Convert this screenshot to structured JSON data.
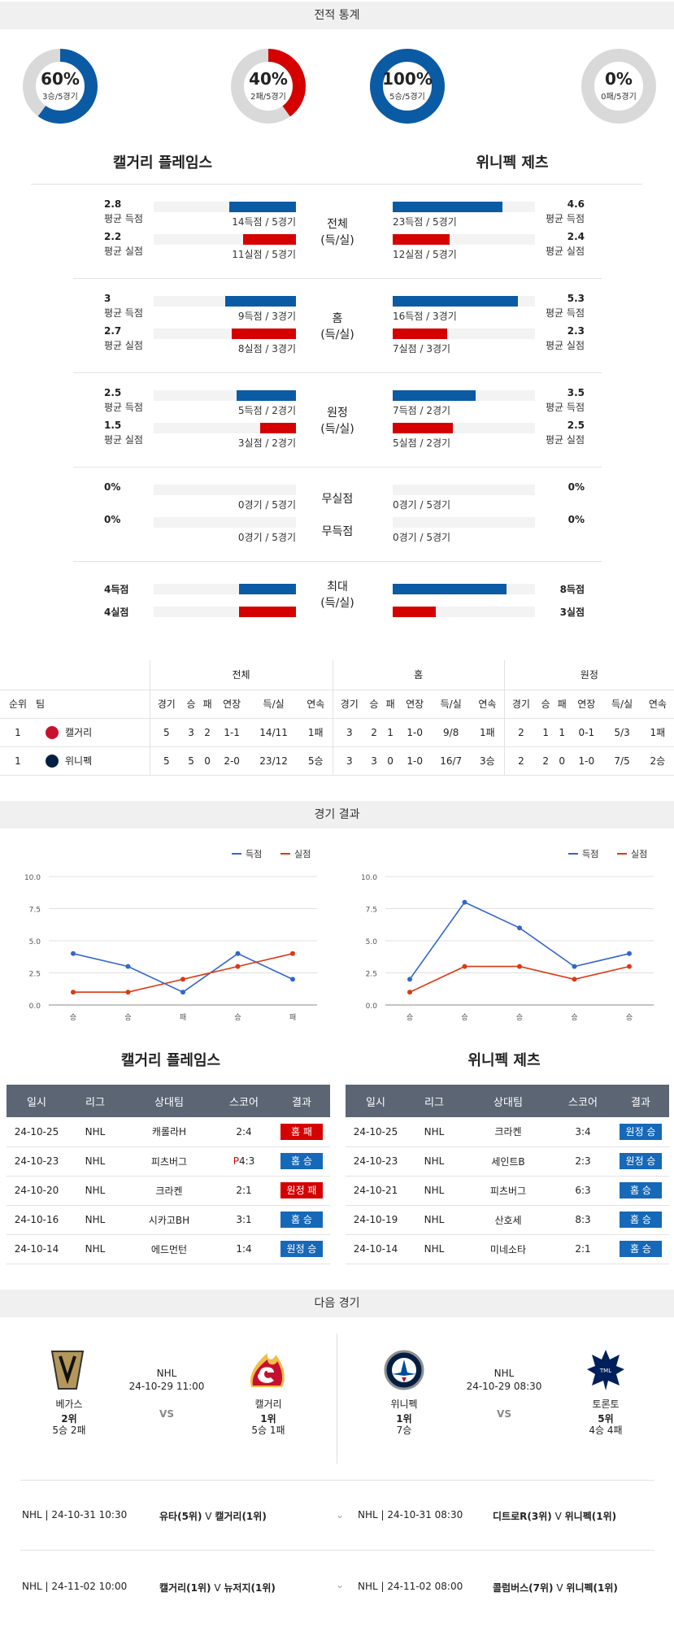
{
  "record_section": {
    "title": "전적 통계",
    "donuts": [
      {
        "pct": "60%",
        "sub": "3승/5경기",
        "value": 0.6,
        "color": "#0b5aa4"
      },
      {
        "pct": "40%",
        "sub": "2패/5경기",
        "value": 0.4,
        "color": "#d50000"
      },
      {
        "pct": "100%",
        "sub": "5승/5경기",
        "value": 1.0,
        "color": "#0b5aa4"
      },
      {
        "pct": "0%",
        "sub": "0패/5경기",
        "value": 0.0,
        "color": "#d50000"
      }
    ],
    "team_left": "캘거리 플레임스",
    "team_right": "위니펙 제츠",
    "groups": [
      {
        "label1": "전체",
        "label2": "(득/실)",
        "left": [
          {
            "val": "2.8",
            "lbl": "평균 득점",
            "sub": "14득점 / 5경기",
            "fill": 0.47,
            "color": "blue"
          },
          {
            "val": "2.2",
            "lbl": "평균 실점",
            "sub": "11실점 / 5경기",
            "fill": 0.37,
            "color": "red"
          }
        ],
        "right": [
          {
            "val": "4.6",
            "lbl": "평균 득점",
            "sub": "23득점 / 5경기",
            "fill": 0.77,
            "color": "blue"
          },
          {
            "val": "2.4",
            "lbl": "평균 실점",
            "sub": "12실점 / 5경기",
            "fill": 0.4,
            "color": "red"
          }
        ]
      },
      {
        "label1": "홈",
        "label2": "(득/실)",
        "left": [
          {
            "val": "3",
            "lbl": "평균 득점",
            "sub": "9득점 / 3경기",
            "fill": 0.5,
            "color": "blue"
          },
          {
            "val": "2.7",
            "lbl": "평균 실점",
            "sub": "8실점 / 3경기",
            "fill": 0.45,
            "color": "red"
          }
        ],
        "right": [
          {
            "val": "5.3",
            "lbl": "평균 득점",
            "sub": "16득점 / 3경기",
            "fill": 0.88,
            "color": "blue"
          },
          {
            "val": "2.3",
            "lbl": "평균 실점",
            "sub": "7실점 / 3경기",
            "fill": 0.38,
            "color": "red"
          }
        ]
      },
      {
        "label1": "원정",
        "label2": "(득/실)",
        "left": [
          {
            "val": "2.5",
            "lbl": "평균 득점",
            "sub": "5득점 / 2경기",
            "fill": 0.42,
            "color": "blue"
          },
          {
            "val": "1.5",
            "lbl": "평균 실점",
            "sub": "3실점 / 2경기",
            "fill": 0.25,
            "color": "red"
          }
        ],
        "right": [
          {
            "val": "3.5",
            "lbl": "평균 득점",
            "sub": "7득점 / 2경기",
            "fill": 0.58,
            "color": "blue"
          },
          {
            "val": "2.5",
            "lbl": "평균 실점",
            "sub": "5실점 / 2경기",
            "fill": 0.42,
            "color": "red"
          }
        ]
      },
      {
        "label1": "무실점",
        "label2": "무득점",
        "left": [
          {
            "val": "0%",
            "lbl": "",
            "sub": "0경기 / 5경기",
            "fill": 0,
            "color": "blue"
          },
          {
            "val": "0%",
            "lbl": "",
            "sub": "0경기 / 5경기",
            "fill": 0,
            "color": "red"
          }
        ],
        "right": [
          {
            "val": "0%",
            "lbl": "",
            "sub": "0경기 / 5경기",
            "fill": 0,
            "color": "blue"
          },
          {
            "val": "0%",
            "lbl": "",
            "sub": "0경기 / 5경기",
            "fill": 0,
            "color": "red"
          }
        ]
      },
      {
        "label1": "최대",
        "label2": "(득/실)",
        "left": [
          {
            "val": "4득점",
            "lbl": "",
            "sub": "",
            "fill": 0.4,
            "color": "blue"
          },
          {
            "val": "4실점",
            "lbl": "",
            "sub": "",
            "fill": 0.4,
            "color": "red"
          }
        ],
        "right": [
          {
            "val": "8득점",
            "lbl": "",
            "sub": "",
            "fill": 0.8,
            "color": "blue"
          },
          {
            "val": "3실점",
            "lbl": "",
            "sub": "",
            "fill": 0.3,
            "color": "red"
          }
        ]
      }
    ]
  },
  "standings": {
    "groups": [
      "전체",
      "홈",
      "원정"
    ],
    "headers": [
      "순위",
      "팀",
      "경기",
      "승",
      "패",
      "연장",
      "득/실",
      "연속",
      "경기",
      "승",
      "패",
      "연장",
      "득/실",
      "연속",
      "경기",
      "승",
      "패",
      "연장",
      "득/실",
      "연속"
    ],
    "rows": [
      [
        "1",
        "캘거리",
        "5",
        "3",
        "2",
        "1-1",
        "14/11",
        "1패",
        "3",
        "2",
        "1",
        "1-0",
        "9/8",
        "1패",
        "2",
        "1",
        "1",
        "0-1",
        "5/3",
        "1패"
      ],
      [
        "1",
        "위니펙",
        "5",
        "5",
        "0",
        "2-0",
        "23/12",
        "5승",
        "3",
        "3",
        "0",
        "1-0",
        "16/7",
        "3승",
        "2",
        "2",
        "0",
        "1-0",
        "7/5",
        "2승"
      ]
    ]
  },
  "results_section": {
    "title": "경기 결과",
    "legend_score": "득점",
    "legend_concede": "실점"
  },
  "chart_data": [
    {
      "type": "line",
      "categories": [
        "승",
        "승",
        "패",
        "승",
        "패"
      ],
      "series": [
        {
          "name": "득점",
          "values": [
            4,
            3,
            1,
            4,
            2
          ],
          "color": "#3366cc"
        },
        {
          "name": "실점",
          "values": [
            1,
            1,
            2,
            3,
            4
          ],
          "color": "#dc3912"
        }
      ],
      "ylim": [
        0,
        10
      ],
      "yticks": [
        "0.0",
        "2.5",
        "5.0",
        "7.5",
        "10.0"
      ]
    },
    {
      "type": "line",
      "categories": [
        "승",
        "승",
        "승",
        "승",
        "승"
      ],
      "series": [
        {
          "name": "득점",
          "values": [
            2,
            8,
            6,
            3,
            4
          ],
          "color": "#3366cc"
        },
        {
          "name": "실점",
          "values": [
            1,
            3,
            3,
            2,
            3
          ],
          "color": "#dc3912"
        }
      ],
      "ylim": [
        0,
        10
      ],
      "yticks": [
        "0.0",
        "2.5",
        "5.0",
        "7.5",
        "10.0"
      ]
    }
  ],
  "results": {
    "headers": [
      "일시",
      "리그",
      "상대팀",
      "스코어",
      "결과"
    ],
    "left_team": "캘거리 플레임스",
    "right_team": "위니펙 제츠",
    "left": [
      {
        "date": "24-10-25",
        "league": "NHL",
        "opp": "캐롤라H",
        "prefix": "",
        "score": "2:4",
        "result": "홈 패",
        "color": "red"
      },
      {
        "date": "24-10-23",
        "league": "NHL",
        "opp": "피츠버그",
        "prefix": "P",
        "score": "4:3",
        "result": "홈 승",
        "color": "blue"
      },
      {
        "date": "24-10-20",
        "league": "NHL",
        "opp": "크라켄",
        "prefix": "",
        "score": "2:1",
        "result": "원정 패",
        "color": "red"
      },
      {
        "date": "24-10-16",
        "league": "NHL",
        "opp": "시카고BH",
        "prefix": "",
        "score": "3:1",
        "result": "홈 승",
        "color": "blue"
      },
      {
        "date": "24-10-14",
        "league": "NHL",
        "opp": "에드먼턴",
        "prefix": "",
        "score": "1:4",
        "result": "원정 승",
        "color": "blue"
      }
    ],
    "right": [
      {
        "date": "24-10-25",
        "league": "NHL",
        "opp": "크라켄",
        "prefix": "",
        "score": "3:4",
        "result": "원정 승",
        "color": "blue"
      },
      {
        "date": "24-10-23",
        "league": "NHL",
        "opp": "세인트B",
        "prefix": "",
        "score": "2:3",
        "result": "원정 승",
        "color": "blue"
      },
      {
        "date": "24-10-21",
        "league": "NHL",
        "opp": "피츠버그",
        "prefix": "",
        "score": "6:3",
        "result": "홈 승",
        "color": "blue"
      },
      {
        "date": "24-10-19",
        "league": "NHL",
        "opp": "산호세",
        "prefix": "",
        "score": "8:3",
        "result": "홈 승",
        "color": "blue"
      },
      {
        "date": "24-10-14",
        "league": "NHL",
        "opp": "미네소타",
        "prefix": "",
        "score": "2:1",
        "result": "홈 승",
        "color": "blue"
      }
    ]
  },
  "next": {
    "title": "다음 경기",
    "matches": [
      {
        "league": "NHL",
        "datetime": "24-10-29 11:00",
        "vs": "VS",
        "home": {
          "name": "베가스",
          "rank": "2위",
          "rec": "5승 2패"
        },
        "away": {
          "name": "캘거리",
          "rank": "1위",
          "rec": "5승 1패"
        }
      },
      {
        "league": "NHL",
        "datetime": "24-10-29 08:30",
        "vs": "VS",
        "home": {
          "name": "위니펙",
          "rank": "1위",
          "rec": "7승"
        },
        "away": {
          "name": "토론토",
          "rank": "5위",
          "rec": "4승 4패"
        }
      }
    ],
    "upcoming": [
      {
        "left": {
          "meta": "NHL | 24-10-31 10:30",
          "a": "유타(5위)",
          "v": "V",
          "b": "캘거리(1위)"
        },
        "right": {
          "meta": "NHL | 24-10-31 08:30",
          "a": "디트로R(3위)",
          "v": "V",
          "b": "위니펙(1위)"
        }
      },
      {
        "left": {
          "meta": "NHL | 24-11-02 10:00",
          "a": "캘거리(1위)",
          "v": "V",
          "b": "뉴저지(1위)"
        },
        "right": {
          "meta": "NHL | 24-11-02 08:00",
          "a": "콜럼버스(7위)",
          "v": "V",
          "b": "위니펙(1위)"
        }
      }
    ]
  }
}
